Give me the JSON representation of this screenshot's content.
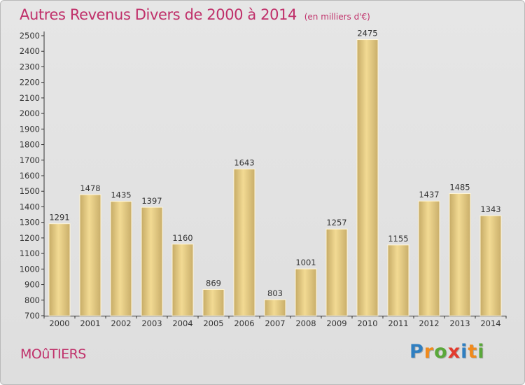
{
  "header": {
    "title": "Autres Revenus Divers de 2000 à 2014",
    "unit": "(en milliers d'€)"
  },
  "footer": {
    "location": "MOûTIERS",
    "brand": "Proxiti",
    "brand_letters": [
      {
        "ch": "P",
        "color": "#2f7fc1"
      },
      {
        "ch": "r",
        "color": "#f08a1c"
      },
      {
        "ch": "o",
        "color": "#5aa83a"
      },
      {
        "ch": "x",
        "color": "#e23b2e"
      },
      {
        "ch": "i",
        "color": "#2f7fc1"
      },
      {
        "ch": "t",
        "color": "#f08a1c"
      },
      {
        "ch": "i",
        "color": "#5aa83a"
      }
    ]
  },
  "colors": {
    "title": "#c0306a",
    "bar_light": "#f3dc96",
    "bar_dark": "#c4a964",
    "background": "#e2e2e2"
  },
  "chart_data": {
    "type": "bar",
    "title": "Autres Revenus Divers de 2000 à 2014",
    "subtitle": "(en milliers d'€)",
    "categories": [
      "2000",
      "2001",
      "2002",
      "2003",
      "2004",
      "2005",
      "2006",
      "2007",
      "2008",
      "2009",
      "2010",
      "2011",
      "2012",
      "2013",
      "2014"
    ],
    "values": [
      1291,
      1478,
      1435,
      1397,
      1160,
      869,
      1643,
      803,
      1001,
      1257,
      2475,
      1155,
      1437,
      1485,
      1343
    ],
    "ylim": [
      700,
      2500
    ],
    "yticks": [
      700,
      800,
      900,
      1000,
      1100,
      1200,
      1300,
      1400,
      1500,
      1600,
      1700,
      1800,
      1900,
      2000,
      2100,
      2200,
      2300,
      2400,
      2500
    ],
    "grid": false,
    "legend": "none"
  }
}
